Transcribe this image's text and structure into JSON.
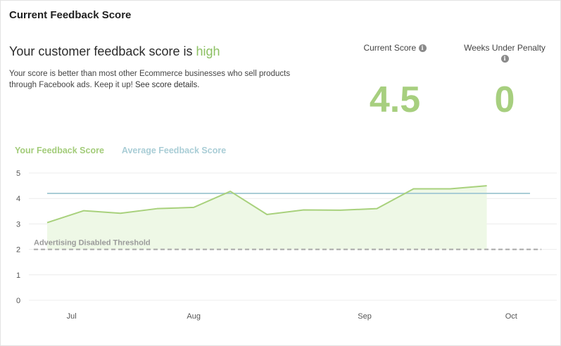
{
  "card": {
    "title": "Current Feedback Score"
  },
  "summary": {
    "headline_prefix": "Your customer feedback score is ",
    "headline_level": "high",
    "description": "Your score is better than most other Ecommerce businesses who sell products through Facebook ads. Keep it up! ",
    "details_link": "See score details."
  },
  "stats": {
    "current_score": {
      "label": "Current Score",
      "value": "4.5",
      "icon": "info-icon"
    },
    "weeks_under_penalty": {
      "label": "Weeks Under Penalty",
      "value": "0",
      "icon": "info-icon"
    }
  },
  "colors": {
    "score_green": "#a7cf7f",
    "series_green": "#a8d17c",
    "average_blue": "#a9cdd6",
    "threshold_gray": "#a8a8a8"
  },
  "chart_data": {
    "type": "line",
    "ylim": [
      0,
      5
    ],
    "yticks": [
      0,
      1,
      2,
      3,
      4,
      5
    ],
    "x_tick_labels": [
      "Jul",
      "Aug",
      "Sep",
      "Oct"
    ],
    "x_tick_index": [
      1,
      6,
      13,
      19
    ],
    "series": [
      {
        "name": "Your Feedback Score",
        "values": [
          3.05,
          3.52,
          3.42,
          3.6,
          3.65,
          4.28,
          3.37,
          3.55,
          3.54,
          3.6,
          4.38,
          4.38,
          4.5
        ]
      },
      {
        "name": "Average Feedback Score",
        "values": [
          4.2,
          4.2,
          4.2,
          4.2,
          4.2,
          4.2,
          4.2,
          4.2,
          4.2,
          4.2,
          4.2,
          4.2,
          4.2
        ]
      }
    ],
    "threshold": {
      "label": "Advertising Disabled Threshold",
      "value": 2
    },
    "grid": true
  }
}
